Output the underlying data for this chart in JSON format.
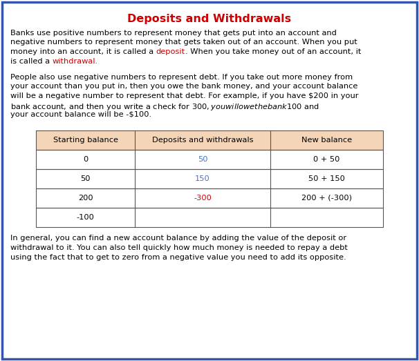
{
  "title": "Deposits and Withdrawals",
  "title_color": "#cc0000",
  "bg_color": "#ffffff",
  "border_color": "#3355aa",
  "fs_title": 11.5,
  "fs_body": 8.2,
  "para1_lines": [
    [
      {
        "text": "Banks use positive numbers to represent money that gets put into an account and",
        "color": "#000000"
      }
    ],
    [
      {
        "text": "negative numbers to represent money that gets taken out of an account. When you put",
        "color": "#000000"
      }
    ],
    [
      {
        "text": "money into an account, it is called a ",
        "color": "#000000"
      },
      {
        "text": "deposit",
        "color": "#cc0000"
      },
      {
        "text": ". When you take money out of an account, it",
        "color": "#000000"
      }
    ],
    [
      {
        "text": "is called a ",
        "color": "#000000"
      },
      {
        "text": "withdrawal.",
        "color": "#cc0000"
      }
    ]
  ],
  "para2_lines": [
    "People also use negative numbers to represent debt. If you take out more money from",
    "your account than you put in, then you owe the bank money, and your account balance",
    "will be a negative number to represent that debt. For example, if you have $200 in your",
    "bank account, and then you write a check for $300, you will owe the bank $100 and",
    "your account balance will be -$100."
  ],
  "table_header": [
    "Starting balance",
    "Deposits and withdrawals",
    "New balance"
  ],
  "table_header_bg": "#f5d5b8",
  "table_rows": [
    {
      "col1": "0",
      "col1_color": "#000000",
      "col2": "50",
      "col2_color": "#4472c4",
      "col3": "0 + 50",
      "col3_color": "#000000"
    },
    {
      "col1": "50",
      "col1_color": "#000000",
      "col2": "150",
      "col2_color": "#4472c4",
      "col3": "50 + 150",
      "col3_color": "#000000"
    },
    {
      "col1": "200",
      "col1_color": "#000000",
      "col2": "-300",
      "col2_color": "#cc0000",
      "col3": "200 + (-300)",
      "col3_color": "#000000"
    },
    {
      "col1": "-100",
      "col1_color": "#000000",
      "col2": "",
      "col2_color": "#000000",
      "col3": "",
      "col3_color": "#000000"
    }
  ],
  "footer_lines": [
    "In general, you can find a new account balance by adding the value of the deposit or",
    "withdrawal to it. You can also tell quickly how much money is needed to repay a debt",
    "using the fact that to get to zero from a negative value you need to add its opposite."
  ]
}
